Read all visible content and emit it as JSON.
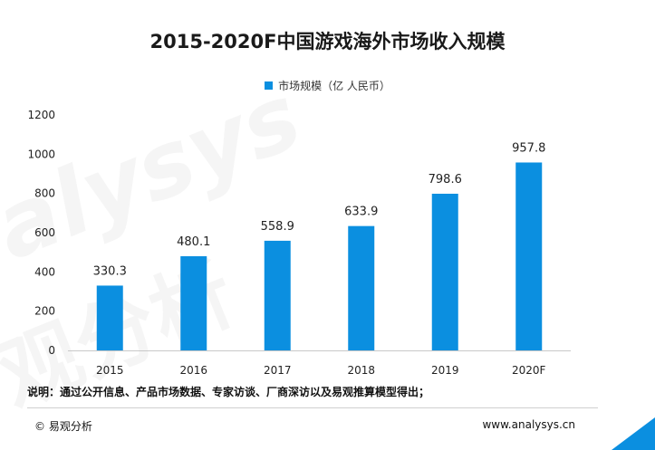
{
  "chart_data": {
    "type": "bar",
    "title": "2015-2020F中国游戏海外市场收入规模",
    "categories": [
      "2015",
      "2016",
      "2017",
      "2018",
      "2019",
      "2020F"
    ],
    "series": [
      {
        "name": "市场规模（亿 人民币）",
        "values": [
          330.3,
          480.1,
          558.9,
          633.9,
          798.6,
          957.8
        ]
      }
    ],
    "data_labels": [
      "330.3",
      "480.1",
      "558.9",
      "633.9",
      "798.6",
      "957.8"
    ],
    "ylim": [
      0,
      1200
    ],
    "yticks": [
      0,
      200,
      400,
      600,
      800,
      1000,
      1200
    ],
    "xlabel": "",
    "ylabel": "",
    "legend_position": "top-center",
    "grid": false
  },
  "colors": {
    "bar": "#0b8fe0",
    "axis": "#c8c8c8",
    "text": "#222222"
  },
  "note": "说明：通过公开信息、产品市场数据、专家访谈、厂商深访以及易观推算模型得出；",
  "footer": {
    "copyright": "© 易观分析",
    "website": "www.analysys.cn"
  },
  "watermark": {
    "latin": "alysys",
    "chinese": "观分析"
  }
}
